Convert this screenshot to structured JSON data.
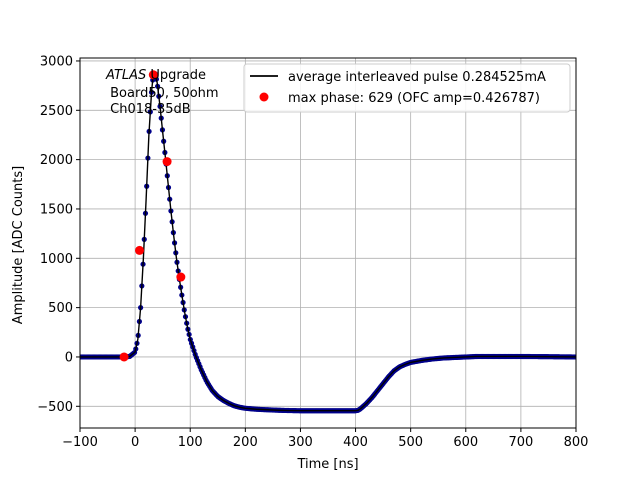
{
  "chart_data": {
    "type": "scatter",
    "xlabel": "Time [ns]",
    "ylabel": "Amplitude [ADC Counts]",
    "xlim": [
      -100,
      800
    ],
    "ylim": [
      -720,
      3030
    ],
    "xticks": [
      -100,
      0,
      100,
      200,
      300,
      400,
      500,
      600,
      700,
      800
    ],
    "yticks": [
      -500,
      0,
      500,
      1000,
      1500,
      2000,
      2500,
      3000
    ],
    "grid": true,
    "legend_position": "top-right",
    "annotation": {
      "line1_italic": "ATLAS",
      "line1_rest": " Upgrade",
      "line2": " Board50, 50ohm",
      "line3": " Ch018-35dB"
    },
    "series": [
      {
        "name": "average interleaved pulse 0.284525mA",
        "kind": "line+dense-markers",
        "line_color": "#000000",
        "marker_color": "#00008b",
        "x": [
          -100,
          -20,
          -10,
          0,
          5,
          10,
          15,
          20,
          25,
          30,
          33,
          36,
          40,
          45,
          50,
          55,
          60,
          65,
          70,
          75,
          80,
          85,
          90,
          95,
          100,
          110,
          120,
          130,
          140,
          150,
          160,
          170,
          180,
          190,
          200,
          220,
          240,
          260,
          280,
          300,
          320,
          340,
          360,
          380,
          400,
          405,
          410,
          420,
          430,
          440,
          450,
          460,
          470,
          480,
          490,
          500,
          520,
          540,
          560,
          580,
          600,
          620,
          650,
          700,
          750,
          800
        ],
        "y": [
          0,
          0,
          5,
          50,
          180,
          500,
          1000,
          1600,
          2250,
          2700,
          2860,
          2880,
          2780,
          2550,
          2280,
          2020,
          1750,
          1480,
          1230,
          1000,
          800,
          620,
          450,
          300,
          180,
          10,
          -130,
          -250,
          -340,
          -400,
          -440,
          -470,
          -495,
          -510,
          -520,
          -530,
          -535,
          -540,
          -543,
          -545,
          -545,
          -545,
          -545,
          -545,
          -545,
          -540,
          -520,
          -470,
          -410,
          -340,
          -270,
          -200,
          -140,
          -100,
          -75,
          -55,
          -35,
          -20,
          -10,
          -5,
          0,
          5,
          5,
          5,
          3,
          0
        ]
      },
      {
        "name": "max phase: 629 (OFC amp=0.426787)",
        "kind": "marker",
        "marker_color": "#ff0000",
        "x": [
          -20,
          8,
          33,
          58,
          83
        ],
        "y": [
          0,
          1080,
          2860,
          1980,
          810
        ]
      }
    ]
  }
}
